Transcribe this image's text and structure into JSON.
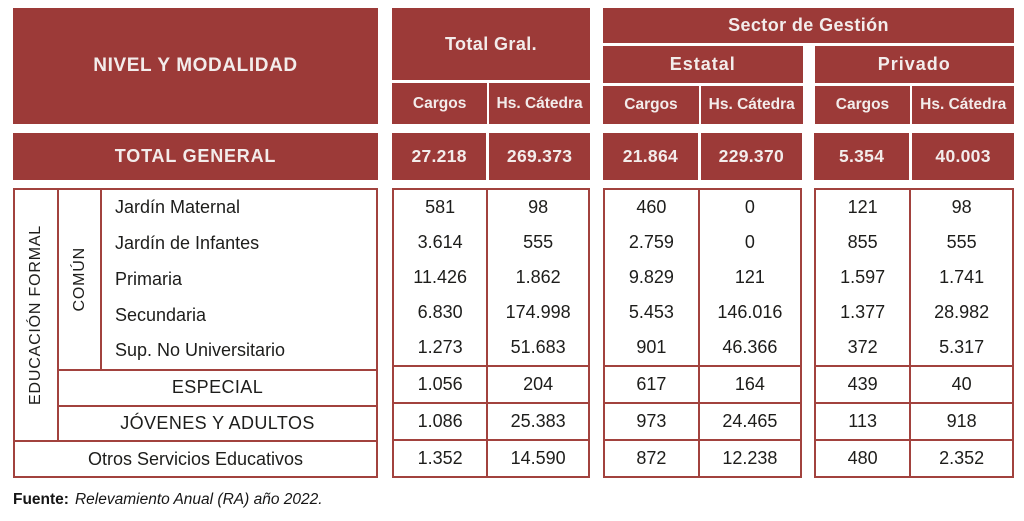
{
  "colors": {
    "brand_red": "#9c3a38",
    "border_red": "#a2423e",
    "text_dark": "#1d1d1b",
    "header_text": "#f3eceb",
    "page_bg": "#ffffff"
  },
  "header": {
    "nivel_y_modalidad": "NIVEL Y MODALIDAD",
    "total_gral": "Total Gral.",
    "sector_de_gestion": "Sector de Gestión",
    "estatal": "Estatal",
    "privado": "Privado",
    "cargos": "Cargos",
    "hs_catedra": "Hs. Cátedra"
  },
  "groups": {
    "educacion_formal": "EDUCACIÓN FORMAL",
    "comun": "COMÚN"
  },
  "total_general": {
    "label": "TOTAL GENERAL",
    "values": [
      "27.218",
      "269.373",
      "21.864",
      "229.370",
      "5.354",
      "40.003"
    ]
  },
  "rows": [
    {
      "label": "Jardín Maternal",
      "values": [
        "581",
        "98",
        "460",
        "0",
        "121",
        "98"
      ]
    },
    {
      "label": "Jardín de Infantes",
      "values": [
        "3.614",
        "555",
        "2.759",
        "0",
        "855",
        "555"
      ]
    },
    {
      "label": "Primaria",
      "values": [
        "11.426",
        "1.862",
        "9.829",
        "121",
        "1.597",
        "1.741"
      ]
    },
    {
      "label": "Secundaria",
      "values": [
        "6.830",
        "174.998",
        "5.453",
        "146.016",
        "1.377",
        "28.982"
      ]
    },
    {
      "label": "Sup. No Universitario",
      "values": [
        "1.273",
        "51.683",
        "901",
        "46.366",
        "372",
        "5.317"
      ]
    },
    {
      "label": "ESPECIAL",
      "values": [
        "1.056",
        "204",
        "617",
        "164",
        "439",
        "40"
      ]
    },
    {
      "label": "JÓVENES Y ADULTOS",
      "values": [
        "1.086",
        "25.383",
        "973",
        "24.465",
        "113",
        "918"
      ]
    },
    {
      "label": "Otros Servicios Educativos",
      "values": [
        "1.352",
        "14.590",
        "872",
        "12.238",
        "480",
        "2.352"
      ]
    }
  ],
  "footnote": {
    "label": "Fuente:",
    "text": "Relevamiento Anual (RA) año 2022."
  },
  "chart_data": {
    "type": "table",
    "columns": [
      "NIVEL Y MODALIDAD",
      "Total Gral. – Cargos",
      "Total Gral. – Hs. Cátedra",
      "Sector de Gestión – Estatal – Cargos",
      "Sector de Gestión – Estatal – Hs. Cátedra",
      "Sector de Gestión – Privado – Cargos",
      "Sector de Gestión – Privado – Hs. Cátedra"
    ],
    "rows": [
      {
        "nivel": "TOTAL GENERAL",
        "group": "",
        "values": [
          27218,
          269373,
          21864,
          229370,
          5354,
          40003
        ]
      },
      {
        "nivel": "Jardín Maternal",
        "group": "EDUCACIÓN FORMAL / COMÚN",
        "values": [
          581,
          98,
          460,
          0,
          121,
          98
        ]
      },
      {
        "nivel": "Jardín de Infantes",
        "group": "EDUCACIÓN FORMAL / COMÚN",
        "values": [
          3614,
          555,
          2759,
          0,
          855,
          555
        ]
      },
      {
        "nivel": "Primaria",
        "group": "EDUCACIÓN FORMAL / COMÚN",
        "values": [
          11426,
          1862,
          9829,
          121,
          1597,
          1741
        ]
      },
      {
        "nivel": "Secundaria",
        "group": "EDUCACIÓN FORMAL / COMÚN",
        "values": [
          6830,
          174998,
          5453,
          146016,
          1377,
          28982
        ]
      },
      {
        "nivel": "Sup. No Universitario",
        "group": "EDUCACIÓN FORMAL / COMÚN",
        "values": [
          1273,
          51683,
          901,
          46366,
          372,
          5317
        ]
      },
      {
        "nivel": "ESPECIAL",
        "group": "EDUCACIÓN FORMAL",
        "values": [
          1056,
          204,
          617,
          164,
          439,
          40
        ]
      },
      {
        "nivel": "JÓVENES Y ADULTOS",
        "group": "EDUCACIÓN FORMAL",
        "values": [
          1086,
          25383,
          973,
          24465,
          113,
          918
        ]
      },
      {
        "nivel": "Otros Servicios Educativos",
        "group": "",
        "values": [
          1352,
          14590,
          872,
          12238,
          480,
          2352
        ]
      }
    ],
    "source": "Fuente: Relevamiento Anual (RA) año 2022."
  }
}
